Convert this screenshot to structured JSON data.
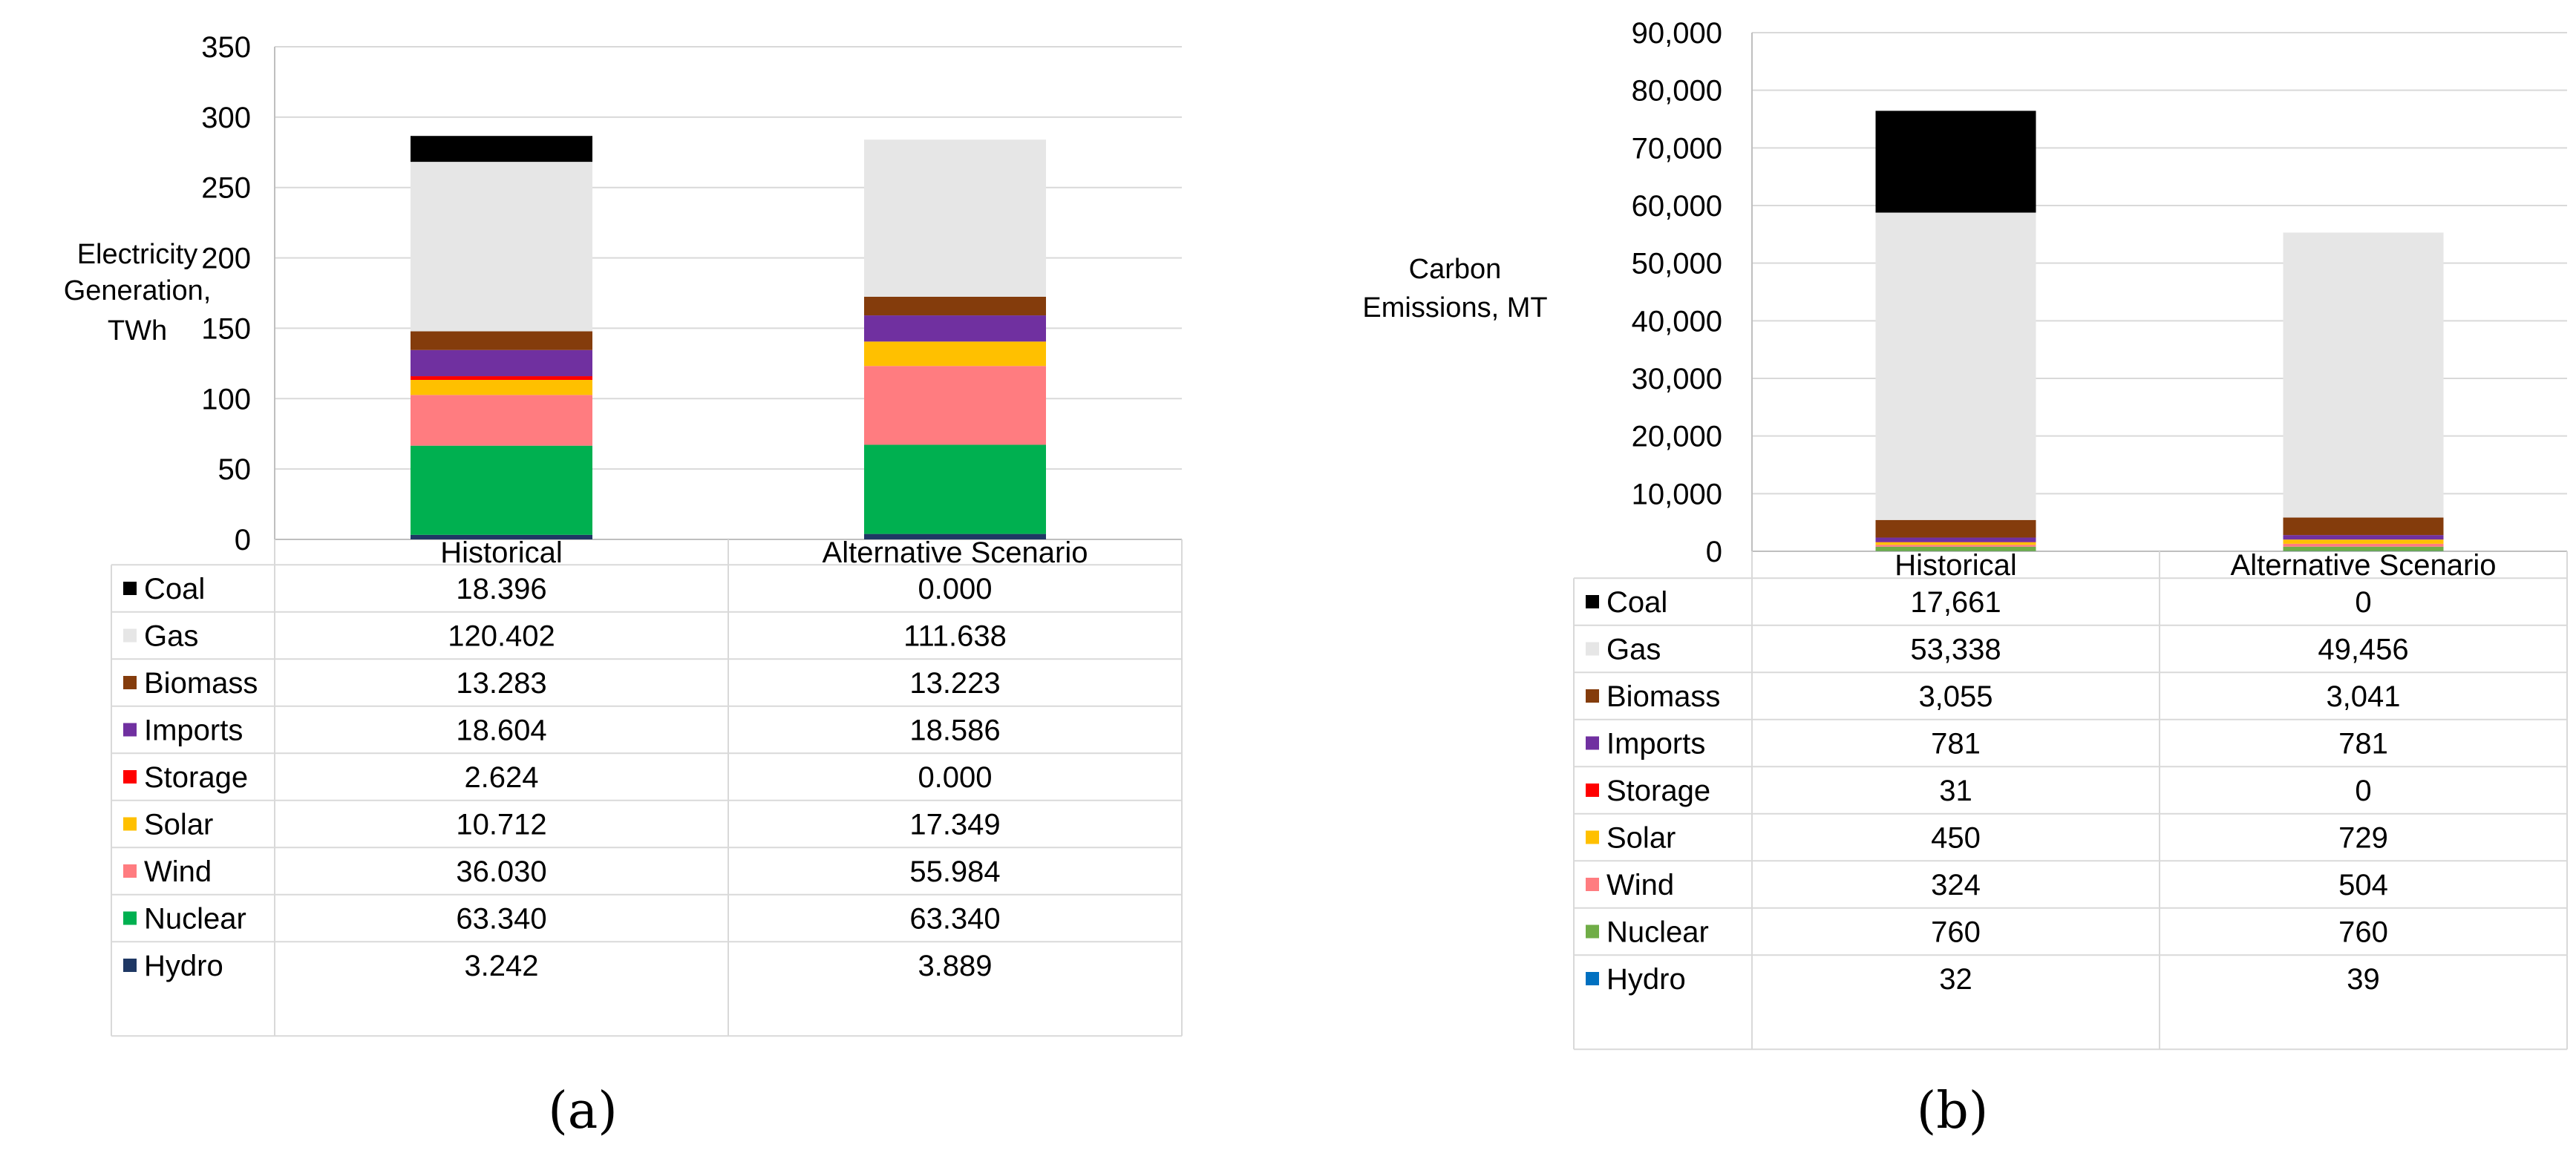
{
  "chart_data": [
    {
      "type": "bar",
      "stacked": true,
      "ylabel": [
        "Electricity",
        "Generation,",
        "TWh"
      ],
      "ylim": [
        0,
        350
      ],
      "yticks": [
        "0",
        "50",
        "100",
        "150",
        "200",
        "250",
        "300",
        "350"
      ],
      "categories": [
        "Historical",
        "Alternative Scenario"
      ],
      "series": [
        {
          "name": "Coal",
          "color": "#000000",
          "values": [
            18.396,
            0.0
          ],
          "labels": [
            "18.396",
            "0.000"
          ]
        },
        {
          "name": "Gas",
          "color": "#e6e6e6",
          "values": [
            120.402,
            111.638
          ],
          "labels": [
            "120.402",
            "111.638"
          ]
        },
        {
          "name": "Biomass",
          "color": "#843c0c",
          "values": [
            13.283,
            13.223
          ],
          "labels": [
            "13.283",
            "13.223"
          ]
        },
        {
          "name": "Imports",
          "color": "#7030a0",
          "values": [
            18.604,
            18.586
          ],
          "labels": [
            "18.604",
            "18.586"
          ]
        },
        {
          "name": "Storage",
          "color": "#ff0000",
          "values": [
            2.624,
            0.0
          ],
          "labels": [
            "2.624",
            "0.000"
          ]
        },
        {
          "name": "Solar",
          "color": "#ffc000",
          "values": [
            10.712,
            17.349
          ],
          "labels": [
            "10.712",
            "17.349"
          ]
        },
        {
          "name": "Wind",
          "color": "#ff7c80",
          "values": [
            36.03,
            55.984
          ],
          "labels": [
            "36.030",
            "55.984"
          ]
        },
        {
          "name": "Nuclear",
          "color": "#00b050",
          "values": [
            63.34,
            63.34
          ],
          "labels": [
            "63.340",
            "63.340"
          ]
        },
        {
          "name": "Hydro",
          "color": "#1f3864",
          "values": [
            3.242,
            3.889
          ],
          "labels": [
            "3.242",
            "3.889"
          ]
        }
      ],
      "panel_label": "(a)"
    },
    {
      "type": "bar",
      "stacked": true,
      "ylabel": [
        "Carbon",
        "Emissions,  MT"
      ],
      "ylim": [
        0,
        90000
      ],
      "yticks": [
        "0",
        "10,000",
        "20,000",
        "30,000",
        "40,000",
        "50,000",
        "60,000",
        "70,000",
        "80,000",
        "90,000"
      ],
      "categories": [
        "Historical",
        "Alternative Scenario"
      ],
      "series": [
        {
          "name": "Coal",
          "color": "#000000",
          "values": [
            17661,
            0
          ],
          "labels": [
            "17,661",
            "0"
          ]
        },
        {
          "name": "Gas",
          "color": "#e6e6e6",
          "values": [
            53338,
            49456
          ],
          "labels": [
            "53,338",
            "49,456"
          ]
        },
        {
          "name": "Biomass",
          "color": "#843c0c",
          "values": [
            3055,
            3041
          ],
          "labels": [
            "3,055",
            "3,041"
          ]
        },
        {
          "name": "Imports",
          "color": "#7030a0",
          "values": [
            781,
            781
          ],
          "labels": [
            "781",
            "781"
          ]
        },
        {
          "name": "Storage",
          "color": "#ff0000",
          "values": [
            31,
            0
          ],
          "labels": [
            "31",
            "0"
          ]
        },
        {
          "name": "Solar",
          "color": "#ffc000",
          "values": [
            450,
            729
          ],
          "labels": [
            "450",
            "729"
          ]
        },
        {
          "name": "Wind",
          "color": "#ff7c80",
          "values": [
            324,
            504
          ],
          "labels": [
            "324",
            "504"
          ]
        },
        {
          "name": "Nuclear",
          "color": "#70ad47",
          "values": [
            760,
            760
          ],
          "labels": [
            "760",
            "760"
          ]
        },
        {
          "name": "Hydro",
          "color": "#0070c0",
          "values": [
            32,
            39
          ],
          "labels": [
            "32",
            "39"
          ]
        }
      ],
      "panel_label": "(b)"
    }
  ]
}
